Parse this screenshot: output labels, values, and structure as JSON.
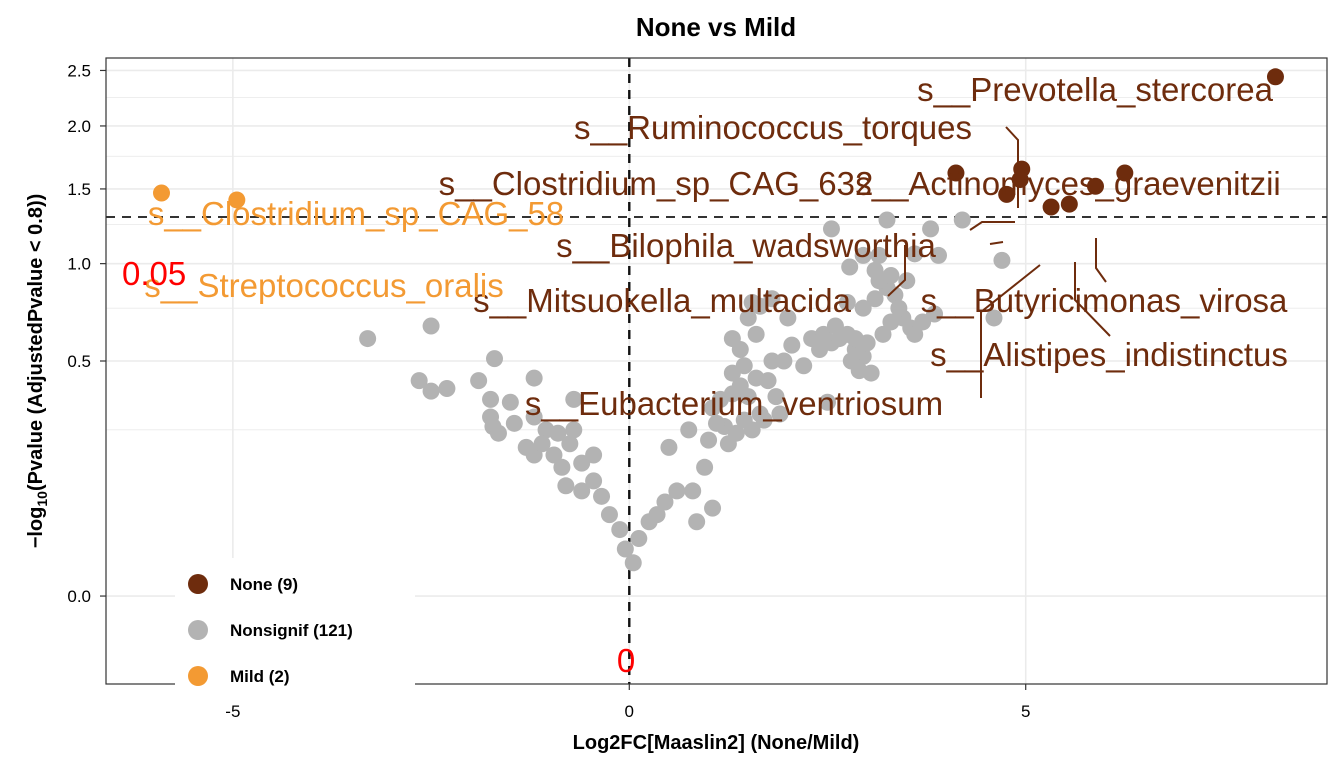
{
  "chart_data": {
    "type": "scatter",
    "title": "None vs Mild",
    "xlabel": "Log2FC[Maaslin2] (None/Mild)",
    "ylabel": "−log10(Pvalue (AdjustedPvalue < 0.8))",
    "xlim": [
      -6.6,
      8.8
    ],
    "ylim": [
      -0.07,
      2.62
    ],
    "x_ticks": [
      -5,
      0,
      5
    ],
    "y_ticks": [
      0.0,
      0.5,
      1.0,
      1.5,
      2.0,
      2.5
    ],
    "y_tick_labels": [
      "0.0",
      "0.5",
      "1.0",
      "1.5",
      "2.0",
      "2.5"
    ],
    "grid": true,
    "y_scale": "sqrt",
    "hline": {
      "y": 1.3,
      "label": "0.05",
      "color": "#ff0000"
    },
    "vline": {
      "x": 0,
      "label": "0",
      "color": "#ff0000"
    },
    "legend": {
      "position": "bottom-left",
      "entries": [
        {
          "label": "None (9)",
          "color": "#6e2c0d"
        },
        {
          "label": "Nonsignif (121)",
          "color": "#b3b3b3"
        },
        {
          "label": "Mild (2)",
          "color": "#f39a33"
        }
      ]
    },
    "series": [
      {
        "name": "None (9)",
        "color": "#6e2c0d",
        "points": [
          {
            "x": 8.15,
            "y": 2.44,
            "label": "s__Prevotella_stercorea"
          },
          {
            "x": 4.95,
            "y": 1.65,
            "label": "s__Ruminococcus_torques"
          },
          {
            "x": 4.12,
            "y": 1.62,
            "label": "s__Clostridium_sp_CAG_632"
          },
          {
            "x": 6.25,
            "y": 1.62,
            "label": "s__Actinomyces_graevenitzii"
          },
          {
            "x": 4.93,
            "y": 1.57,
            "label": ""
          },
          {
            "x": 4.76,
            "y": 1.46,
            "label": "s__Bilophila_wadsworthia"
          },
          {
            "x": 5.88,
            "y": 1.52,
            "label": "s__Butyricimonas_virosa"
          },
          {
            "x": 5.55,
            "y": 1.39,
            "label": "s__Alistipes_indistinctus"
          },
          {
            "x": 5.32,
            "y": 1.37,
            "label": "s__Eubacterium_ventriosum"
          }
        ]
      },
      {
        "name": "Nonsignif (121)",
        "color": "#b3b3b3",
        "points": [
          {
            "x": -3.3,
            "y": 0.6
          },
          {
            "x": -2.5,
            "y": 0.66
          },
          {
            "x": -2.65,
            "y": 0.42
          },
          {
            "x": -2.5,
            "y": 0.38
          },
          {
            "x": -2.3,
            "y": 0.39
          },
          {
            "x": -1.7,
            "y": 0.51
          },
          {
            "x": -1.9,
            "y": 0.42
          },
          {
            "x": -1.2,
            "y": 0.43
          },
          {
            "x": -0.7,
            "y": 0.35
          },
          {
            "x": -1.75,
            "y": 0.35
          },
          {
            "x": -1.5,
            "y": 0.34
          },
          {
            "x": -1.75,
            "y": 0.29
          },
          {
            "x": -1.72,
            "y": 0.26
          },
          {
            "x": -1.65,
            "y": 0.24
          },
          {
            "x": -1.45,
            "y": 0.27
          },
          {
            "x": -1.2,
            "y": 0.29
          },
          {
            "x": -1.05,
            "y": 0.25
          },
          {
            "x": -0.9,
            "y": 0.24
          },
          {
            "x": -0.7,
            "y": 0.25
          },
          {
            "x": -1.3,
            "y": 0.2
          },
          {
            "x": -1.2,
            "y": 0.18
          },
          {
            "x": -1.1,
            "y": 0.21
          },
          {
            "x": -0.95,
            "y": 0.18
          },
          {
            "x": -0.75,
            "y": 0.21
          },
          {
            "x": -0.85,
            "y": 0.15
          },
          {
            "x": -0.6,
            "y": 0.16
          },
          {
            "x": -0.45,
            "y": 0.18
          },
          {
            "x": -0.8,
            "y": 0.11
          },
          {
            "x": -0.6,
            "y": 0.1
          },
          {
            "x": -0.45,
            "y": 0.12
          },
          {
            "x": -0.35,
            "y": 0.09
          },
          {
            "x": -0.25,
            "y": 0.06
          },
          {
            "x": -0.12,
            "y": 0.04
          },
          {
            "x": -0.05,
            "y": 0.02
          },
          {
            "x": 0.05,
            "y": 0.01
          },
          {
            "x": 0.12,
            "y": 0.03
          },
          {
            "x": 0.25,
            "y": 0.05
          },
          {
            "x": 0.35,
            "y": 0.06
          },
          {
            "x": 0.45,
            "y": 0.08
          },
          {
            "x": 0.6,
            "y": 0.1
          },
          {
            "x": 0.8,
            "y": 0.1
          },
          {
            "x": 0.95,
            "y": 0.15
          },
          {
            "x": 0.5,
            "y": 0.2
          },
          {
            "x": 0.75,
            "y": 0.25
          },
          {
            "x": 1.0,
            "y": 0.22
          },
          {
            "x": 1.2,
            "y": 0.26
          },
          {
            "x": 1.05,
            "y": 0.32
          },
          {
            "x": 1.15,
            "y": 0.35
          },
          {
            "x": 1.3,
            "y": 0.37
          },
          {
            "x": 1.5,
            "y": 0.36
          },
          {
            "x": 1.4,
            "y": 0.4
          },
          {
            "x": 1.3,
            "y": 0.45
          },
          {
            "x": 1.45,
            "y": 0.48
          },
          {
            "x": 1.6,
            "y": 0.43
          },
          {
            "x": 1.75,
            "y": 0.42
          },
          {
            "x": 1.85,
            "y": 0.36
          },
          {
            "x": 1.65,
            "y": 0.3
          },
          {
            "x": 1.45,
            "y": 0.28
          },
          {
            "x": 1.35,
            "y": 0.24
          },
          {
            "x": 1.25,
            "y": 0.21
          },
          {
            "x": 1.1,
            "y": 0.27
          },
          {
            "x": 1.55,
            "y": 0.25
          },
          {
            "x": 1.7,
            "y": 0.28
          },
          {
            "x": 1.4,
            "y": 0.55
          },
          {
            "x": 1.3,
            "y": 0.6
          },
          {
            "x": 1.5,
            "y": 0.7
          },
          {
            "x": 1.55,
            "y": 0.78
          },
          {
            "x": 1.65,
            "y": 0.76
          },
          {
            "x": 1.8,
            "y": 0.8
          },
          {
            "x": 1.8,
            "y": 0.5
          },
          {
            "x": 2.05,
            "y": 0.57
          },
          {
            "x": 2.3,
            "y": 0.6
          },
          {
            "x": 2.45,
            "y": 0.62
          },
          {
            "x": 2.55,
            "y": 0.58
          },
          {
            "x": 2.65,
            "y": 0.6
          },
          {
            "x": 2.75,
            "y": 0.62
          },
          {
            "x": 2.85,
            "y": 0.55
          },
          {
            "x": 2.95,
            "y": 0.52
          },
          {
            "x": 2.8,
            "y": 0.5
          },
          {
            "x": 3.0,
            "y": 0.58
          },
          {
            "x": 3.05,
            "y": 0.45
          },
          {
            "x": 2.9,
            "y": 0.46
          },
          {
            "x": 2.85,
            "y": 0.6
          },
          {
            "x": 3.2,
            "y": 0.62
          },
          {
            "x": 3.3,
            "y": 0.68
          },
          {
            "x": 3.45,
            "y": 0.7
          },
          {
            "x": 3.55,
            "y": 0.65
          },
          {
            "x": 3.6,
            "y": 0.62
          },
          {
            "x": 3.7,
            "y": 0.68
          },
          {
            "x": 3.85,
            "y": 0.72
          },
          {
            "x": 3.25,
            "y": 0.86
          },
          {
            "x": 3.35,
            "y": 0.82
          },
          {
            "x": 3.1,
            "y": 0.8
          },
          {
            "x": 2.95,
            "y": 0.75
          },
          {
            "x": 2.75,
            "y": 0.78
          },
          {
            "x": 3.15,
            "y": 0.9
          },
          {
            "x": 3.3,
            "y": 0.93
          },
          {
            "x": 3.5,
            "y": 0.9
          },
          {
            "x": 2.78,
            "y": 0.98
          },
          {
            "x": 2.95,
            "y": 1.05
          },
          {
            "x": 3.15,
            "y": 1.05
          },
          {
            "x": 3.6,
            "y": 1.06
          },
          {
            "x": 3.9,
            "y": 1.05
          },
          {
            "x": 3.8,
            "y": 1.22
          },
          {
            "x": 2.55,
            "y": 1.22
          },
          {
            "x": 3.25,
            "y": 1.28
          },
          {
            "x": 4.2,
            "y": 1.28
          },
          {
            "x": 4.7,
            "y": 1.02
          },
          {
            "x": 4.6,
            "y": 0.7
          },
          {
            "x": 0.85,
            "y": 0.05
          },
          {
            "x": 1.05,
            "y": 0.07
          },
          {
            "x": 2.5,
            "y": 0.34
          },
          {
            "x": 2.0,
            "y": 0.7
          },
          {
            "x": 1.6,
            "y": 0.62
          },
          {
            "x": 1.95,
            "y": 0.5
          },
          {
            "x": 2.2,
            "y": 0.48
          },
          {
            "x": 2.4,
            "y": 0.55
          },
          {
            "x": 2.6,
            "y": 0.66
          },
          {
            "x": 3.4,
            "y": 0.75
          },
          {
            "x": 3.1,
            "y": 0.96
          },
          {
            "x": 1.9,
            "y": 0.3
          }
        ]
      },
      {
        "name": "Mild (2)",
        "color": "#f39a33",
        "points": [
          {
            "x": -5.9,
            "y": 1.47,
            "label": "s__Clostridium_sp_CAG_58"
          },
          {
            "x": -4.95,
            "y": 1.42,
            "label": "s__Streptococcus_oralis"
          }
        ]
      }
    ],
    "annotations": [
      {
        "text": "s__Prevotella_stercorea",
        "color": "#6e2c0d"
      },
      {
        "text": "s__Ruminococcus_torques",
        "color": "#6e2c0d"
      },
      {
        "text": "s__Clostridium_sp_CAG_632",
        "color": "#6e2c0d"
      },
      {
        "text": "s__Actinomyces_graevenitzii",
        "color": "#6e2c0d"
      },
      {
        "text": "s__Bilophila_wadsworthia",
        "color": "#6e2c0d"
      },
      {
        "text": "s__Mitsuokella_multacida",
        "color": "#6e2c0d"
      },
      {
        "text": "s__Butyricimonas_virosa",
        "color": "#6e2c0d"
      },
      {
        "text": "s__Alistipes_indistinctus",
        "color": "#6e2c0d"
      },
      {
        "text": "s__Eubacterium_ventriosum",
        "color": "#6e2c0d"
      },
      {
        "text": "s__Clostridium_sp_CAG_58",
        "color": "#f39a33"
      },
      {
        "text": "s__Streptococcus_oralis",
        "color": "#f39a33"
      }
    ]
  }
}
